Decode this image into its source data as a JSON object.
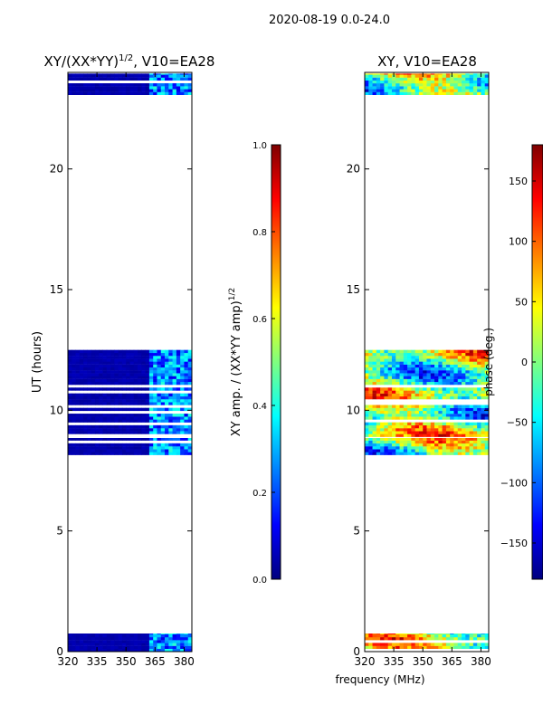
{
  "figure": {
    "suptitle": "2020-08-19 0.0-24.0",
    "shared_xlabel": "frequency (MHz)"
  },
  "colors": {
    "jet": [
      "#00007f",
      "#0000ff",
      "#007fff",
      "#00ffff",
      "#7fff7f",
      "#ffff00",
      "#ff7f00",
      "#ff0000",
      "#7f0000"
    ],
    "flagged": "#ffffff",
    "frame": "#000000"
  },
  "chart_data": [
    {
      "type": "heatmap",
      "id": "amplitude",
      "title": "XY/(XX*YY)",
      "title_sup": "1/2",
      "title_suffix": ", V10=EA28",
      "xlabel": "",
      "ylabel": "UT (hours)",
      "xlim": [
        320,
        384
      ],
      "ylim": [
        0,
        24
      ],
      "xticks": [
        320,
        335,
        350,
        365,
        380
      ],
      "yticks": [
        0,
        5,
        10,
        15,
        20
      ],
      "grid": false,
      "unflagged_time_ranges": [
        [
          0.0,
          0.75
        ],
        [
          8.15,
          8.85
        ],
        [
          8.9,
          12.5
        ],
        [
          22.95,
          23.95
        ]
      ],
      "bright_freq_range": [
        362,
        384
      ],
      "colorbar": {
        "label": "XY amp. / (XX*YY amp)",
        "label_sup": "1/2",
        "range": [
          0.0,
          1.0
        ],
        "ticks": [
          "0.0",
          "0.2",
          "0.4",
          "0.6",
          "0.8",
          "1.0"
        ]
      }
    },
    {
      "type": "heatmap",
      "id": "phase",
      "title": "XY, V10=EA28",
      "xlabel": "frequency (MHz)",
      "ylabel": "",
      "xlim": [
        320,
        384
      ],
      "ylim": [
        0,
        24
      ],
      "xticks": [
        320,
        335,
        350,
        365,
        380
      ],
      "yticks": [
        0,
        5,
        10,
        15,
        20
      ],
      "grid": false,
      "unflagged_time_ranges": [
        [
          0.0,
          0.75
        ],
        [
          8.15,
          8.85
        ],
        [
          8.9,
          12.5
        ],
        [
          22.95,
          23.95
        ]
      ],
      "colorbar": {
        "label": "phase (deg.)",
        "range": [
          -180,
          180
        ],
        "ticks": [
          "150",
          "100",
          "50",
          "0",
          "−50",
          "−100",
          "−150"
        ],
        "tick_values": [
          150,
          100,
          50,
          0,
          -50,
          -100,
          -150
        ]
      }
    }
  ]
}
